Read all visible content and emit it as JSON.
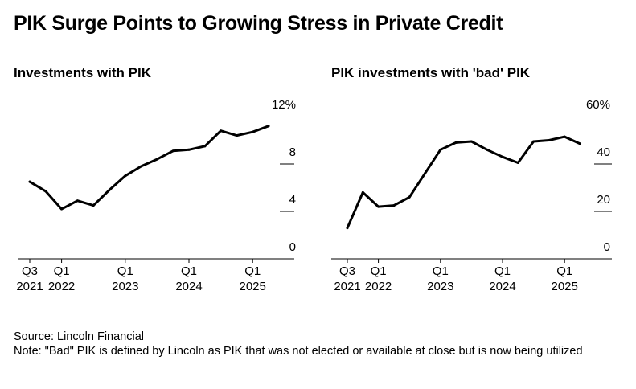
{
  "title": "PIK Surge Points to Growing Stress in Private Credit",
  "chart_data": [
    {
      "type": "line",
      "title": "Investments with PIK",
      "y_unit": "%",
      "ylim": [
        0,
        12
      ],
      "yticks": [
        0,
        4,
        8,
        12
      ],
      "ytick_labels": [
        "0",
        "4",
        "8",
        "12%"
      ],
      "x": [
        "Q3 2021",
        "Q4 2021",
        "Q1 2022",
        "Q2 2022",
        "Q3 2022",
        "Q4 2022",
        "Q1 2023",
        "Q2 2023",
        "Q3 2023",
        "Q4 2023",
        "Q1 2024",
        "Q2 2024",
        "Q3 2024",
        "Q4 2024",
        "Q1 2025",
        "Q2 2025"
      ],
      "xticks": [
        {
          "index": 0,
          "label_line1": "Q3",
          "label_line2": "2021"
        },
        {
          "index": 2,
          "label_line1": "Q1",
          "label_line2": "2022"
        },
        {
          "index": 6,
          "label_line1": "Q1",
          "label_line2": "2023"
        },
        {
          "index": 10,
          "label_line1": "Q1",
          "label_line2": "2024"
        },
        {
          "index": 14,
          "label_line1": "Q1",
          "label_line2": "2025"
        }
      ],
      "series": [
        {
          "name": "Investments with PIK",
          "values": [
            6.5,
            5.7,
            4.2,
            4.9,
            4.5,
            5.8,
            7.0,
            7.8,
            8.4,
            9.1,
            9.2,
            9.5,
            10.8,
            10.4,
            10.7,
            11.2
          ]
        }
      ]
    },
    {
      "type": "line",
      "title": "PIK investments with 'bad' PIK",
      "y_unit": "%",
      "ylim": [
        0,
        60
      ],
      "yticks": [
        0,
        20,
        40,
        60
      ],
      "ytick_labels": [
        "0",
        "20",
        "40",
        "60%"
      ],
      "x": [
        "Q3 2021",
        "Q4 2021",
        "Q1 2022",
        "Q2 2022",
        "Q3 2022",
        "Q4 2022",
        "Q1 2023",
        "Q2 2023",
        "Q3 2023",
        "Q4 2023",
        "Q1 2024",
        "Q2 2024",
        "Q3 2024",
        "Q4 2024",
        "Q1 2025",
        "Q2 2025"
      ],
      "xticks": [
        {
          "index": 0,
          "label_line1": "Q3",
          "label_line2": "2021"
        },
        {
          "index": 2,
          "label_line1": "Q1",
          "label_line2": "2022"
        },
        {
          "index": 6,
          "label_line1": "Q1",
          "label_line2": "2023"
        },
        {
          "index": 10,
          "label_line1": "Q1",
          "label_line2": "2024"
        },
        {
          "index": 14,
          "label_line1": "Q1",
          "label_line2": "2025"
        }
      ],
      "series": [
        {
          "name": "PIK investments with 'bad' PIK",
          "values": [
            13,
            28,
            22,
            22.5,
            26,
            36,
            46,
            49,
            49.5,
            46,
            43,
            40.5,
            49.5,
            50,
            51.5,
            48.5
          ]
        }
      ]
    }
  ],
  "footer": {
    "source": "Source: Lincoln Financial",
    "note": "Note: \"Bad\" PIK is defined by Lincoln as PIK that was not elected or available at close but is now being utilized"
  },
  "colors": {
    "line": "#000000",
    "text": "#000000",
    "background": "#ffffff",
    "grid": "#000000"
  }
}
